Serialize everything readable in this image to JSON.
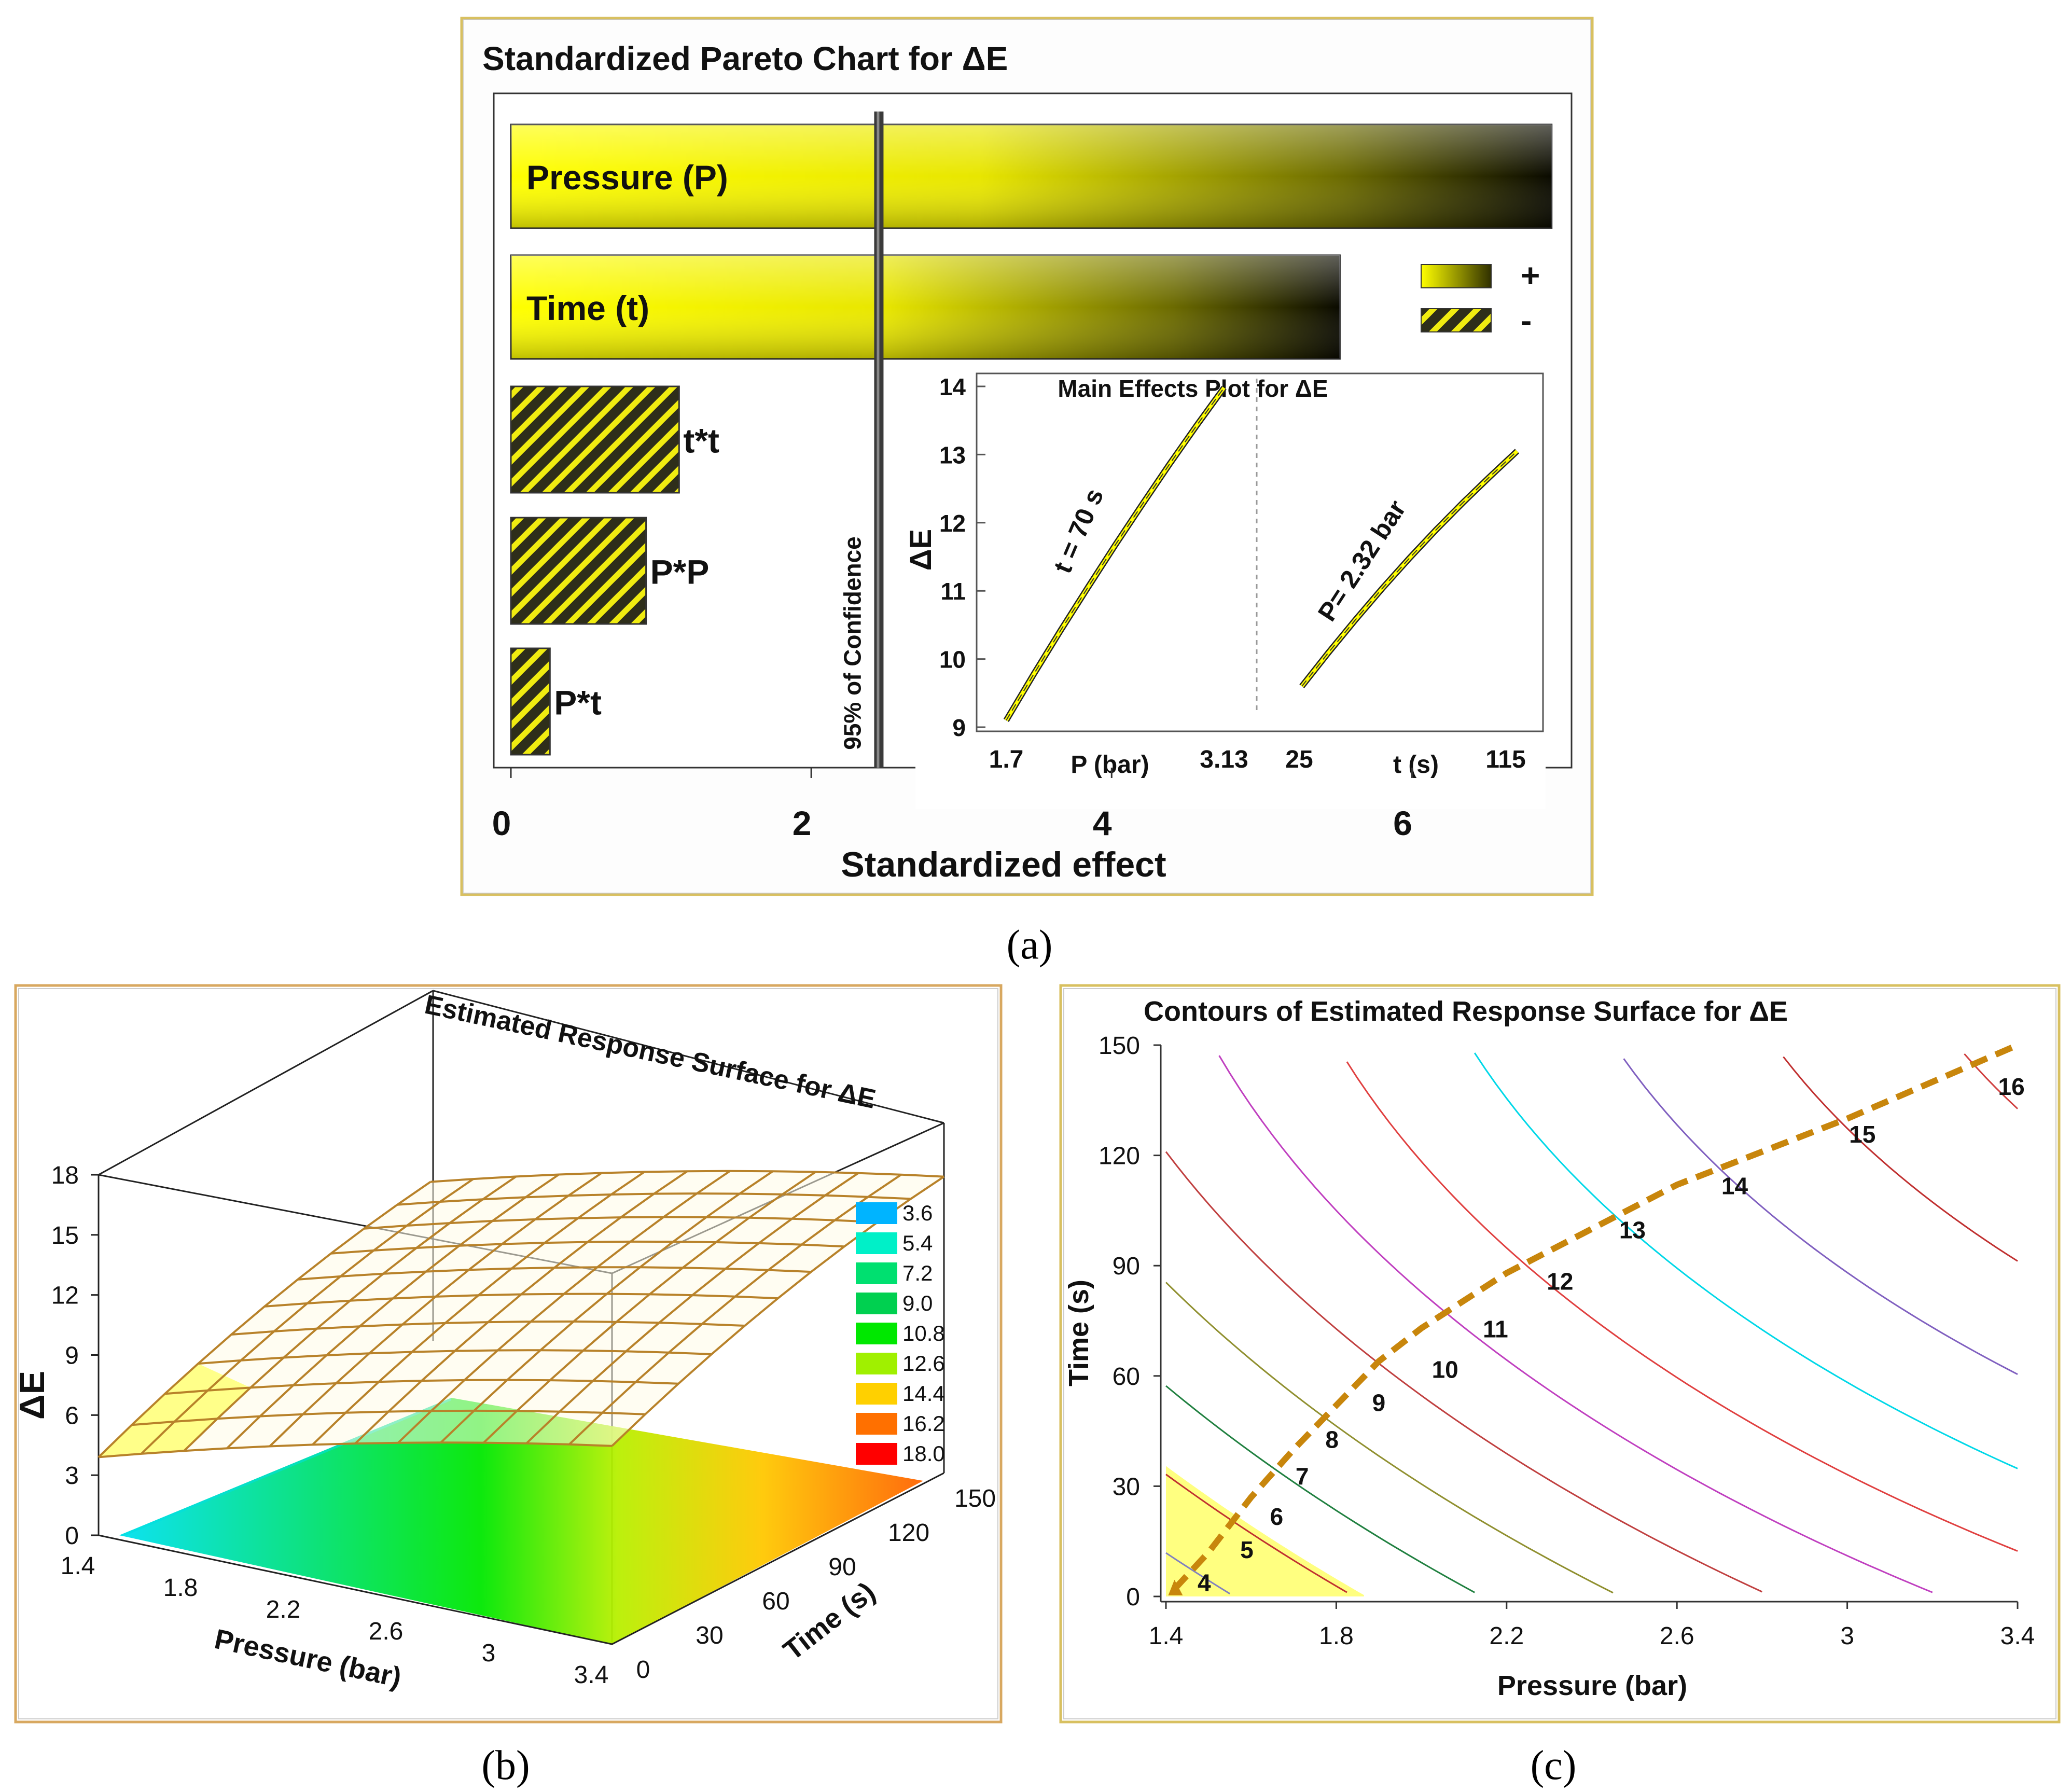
{
  "figure_captions": {
    "a": "(a)",
    "b": "(b)",
    "c": "(c)"
  },
  "colors": {
    "bar_yellow": "#ffff00",
    "frame_gold": "#d8c060",
    "dash_orange": "#c8860c",
    "mesh_gold": "#b8822a"
  },
  "chart_data": [
    {
      "id": "a",
      "type": "bar",
      "orientation": "horizontal",
      "title": "Standardized Pareto Chart for ΔE",
      "xlabel": "Standardized effect",
      "xlim": [
        0,
        7
      ],
      "xticks": [
        0,
        2,
        4,
        6
      ],
      "categories": [
        "Pressure (P)",
        "Time (t)",
        "t*t",
        "P*P",
        "P*t"
      ],
      "values": [
        6.93,
        5.52,
        1.12,
        0.9,
        0.26
      ],
      "signs": [
        "+",
        "+",
        "-",
        "-",
        "-"
      ],
      "legend": {
        "position": "right",
        "entries": [
          "+",
          "-"
        ]
      },
      "reference_line": {
        "value": 2.45,
        "label": "95% of Confidence"
      },
      "inset": {
        "title": "Main Effects Plot for ΔE",
        "ylabel": "ΔE",
        "ylim": [
          9,
          14
        ],
        "yticks": [
          9,
          10,
          11,
          12,
          13,
          14
        ],
        "panels": [
          {
            "factor_label": "P (bar)",
            "range_labels": [
              "1.7",
              "3.13"
            ],
            "fixed_label": "t = 70 s",
            "x": [
              0,
              0.125,
              0.25,
              0.375,
              0.5,
              0.625,
              0.75,
              0.875,
              1
            ],
            "y": [
              9.1,
              9.77,
              10.42,
              11.05,
              11.67,
              12.27,
              12.86,
              13.43,
              13.98
            ]
          },
          {
            "factor_label": "t (s)",
            "range_labels": [
              "25",
              "115"
            ],
            "fixed_label": "P= 2.32 bar",
            "x": [
              0,
              0.125,
              0.25,
              0.375,
              0.5,
              0.625,
              0.75,
              0.875,
              1
            ],
            "y": [
              9.6,
              10.1,
              10.58,
              11.04,
              11.48,
              11.9,
              12.3,
              12.68,
              13.05
            ]
          }
        ]
      }
    },
    {
      "id": "b",
      "type": "surface3d",
      "title": "Estimated Response Surface for ΔE",
      "xlabel": "Pressure (bar)",
      "ylabel": "Time (s)",
      "zlabel": "ΔE",
      "xlim": [
        1.4,
        3.4
      ],
      "ylim": [
        0,
        150
      ],
      "zlim": [
        0,
        18
      ],
      "xticks": [
        "1.4",
        "1.8",
        "2.2",
        "2.6",
        "3",
        "3.4"
      ],
      "yticks": [
        "0",
        "30",
        "60",
        "90",
        "120",
        "150"
      ],
      "zticks": [
        "0",
        "3",
        "6",
        "9",
        "12",
        "15",
        "18"
      ],
      "legend": {
        "levels": [
          "3.6",
          "5.4",
          "7.2",
          "9.0",
          "10.8",
          "12.6",
          "14.4",
          "16.2",
          "18.0"
        ],
        "colors": [
          "#00b4ff",
          "#00f0c8",
          "#00e070",
          "#00d050",
          "#00e800",
          "#a0f000",
          "#ffd000",
          "#ff7000",
          "#ff0000"
        ]
      }
    },
    {
      "id": "c",
      "type": "contour",
      "title": "Contours of Estimated Response Surface for ΔE",
      "xlabel": "Pressure (bar)",
      "ylabel": "Time (s)",
      "xlim": [
        1.4,
        3.4
      ],
      "ylim": [
        0,
        150
      ],
      "xticks": [
        "1.4",
        "1.8",
        "2.2",
        "2.6",
        "3",
        "3.4"
      ],
      "yticks": [
        "0",
        "30",
        "60",
        "90",
        "120",
        "150"
      ],
      "contour_levels": [
        "4",
        "5",
        "6",
        "7",
        "8",
        "9",
        "10",
        "11",
        "12",
        "13",
        "14",
        "15",
        "16"
      ],
      "contour_colors": [
        "#8080c0",
        "#c03030",
        "#208040",
        "#909030",
        "#c04040",
        "#c040c0",
        "#e04040",
        "#00d8e8",
        "#8060c0",
        "#c03030",
        "#d04040",
        "#10a0b0",
        "#8080a0"
      ],
      "steepest_ascent_path": {
        "pressure": [
          1.42,
          1.5,
          1.6,
          1.7,
          1.8,
          1.9,
          2.0,
          2.2,
          2.4,
          2.6,
          2.8,
          3.0,
          3.2,
          3.4
        ],
        "time": [
          2,
          12,
          27,
          40,
          52,
          64,
          73,
          88,
          100,
          112,
          121,
          130,
          140,
          150
        ]
      }
    }
  ]
}
